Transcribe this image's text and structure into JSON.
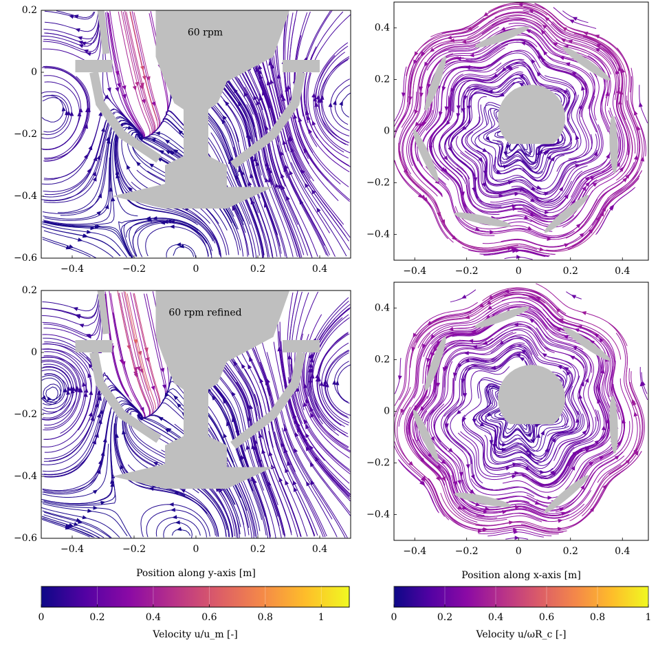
{
  "chart_data": [
    {
      "type": "streamline",
      "annotation": "60 rpm",
      "xlim": [
        -0.5,
        0.5
      ],
      "ylim": [
        -0.6,
        0.2
      ],
      "xticks": [
        {
          "value": -0.4,
          "label": "−0.4"
        },
        {
          "value": -0.2,
          "label": "−0.2"
        },
        0,
        0.2,
        0.4
      ],
      "yticks": [
        0.2,
        0,
        {
          "value": -0.2,
          "label": "−0.2"
        },
        {
          "value": -0.4,
          "label": "−0.4"
        },
        {
          "value": -0.6,
          "label": "−0.6"
        }
      ]
    },
    {
      "type": "streamline",
      "xlim": [
        -0.48,
        0.5
      ],
      "ylim": [
        -0.5,
        0.5
      ],
      "xticks": [
        {
          "value": -0.4,
          "label": "−0.4"
        },
        {
          "value": -0.2,
          "label": "−0.2"
        },
        0,
        0.2,
        0.4
      ],
      "yticks": [
        0.4,
        0.2,
        0,
        {
          "value": -0.2,
          "label": "−0.2"
        },
        {
          "value": -0.4,
          "label": "−0.4"
        }
      ]
    },
    {
      "type": "streamline",
      "annotation": "60 rpm refined",
      "xlim": [
        -0.5,
        0.5
      ],
      "ylim": [
        -0.6,
        0.2
      ],
      "xlabel": "Position along y-axis [m]",
      "xticks": [
        {
          "value": -0.4,
          "label": "−0.4"
        },
        {
          "value": -0.2,
          "label": "−0.2"
        },
        0,
        0.2,
        0.4
      ],
      "yticks": [
        0.2,
        0,
        {
          "value": -0.2,
          "label": "−0.2"
        },
        {
          "value": -0.4,
          "label": "−0.4"
        },
        {
          "value": -0.6,
          "label": "−0.6"
        }
      ]
    },
    {
      "type": "streamline",
      "xlim": [
        -0.48,
        0.5
      ],
      "ylim": [
        -0.5,
        0.5
      ],
      "xlabel": "Position along x-axis [m]",
      "xticks": [
        {
          "value": -0.4,
          "label": "−0.4"
        },
        {
          "value": -0.2,
          "label": "−0.2"
        },
        0,
        0.2,
        0.4
      ],
      "yticks": [
        0.4,
        0.2,
        0,
        {
          "value": -0.2,
          "label": "−0.2"
        },
        {
          "value": -0.4,
          "label": "−0.4"
        }
      ]
    },
    {
      "type": "colorbar",
      "label": "Velocity u/u_m [-]",
      "xlim": [
        0,
        1.1
      ],
      "xticks": [
        0,
        0.2,
        0.4,
        0.6,
        0.8,
        1
      ],
      "colors": [
        "#0d0887",
        "#5302a3",
        "#8b0aa5",
        "#b83289",
        "#db5c68",
        "#f48849",
        "#febd2a",
        "#f0f921"
      ]
    },
    {
      "type": "colorbar",
      "label": "Velocity u/ωR_c [-]",
      "xlim": [
        0,
        1
      ],
      "xticks": [
        0,
        0.2,
        0.4,
        0.6,
        0.8,
        1
      ],
      "colors": [
        "#0d0887",
        "#5302a3",
        "#8b0aa5",
        "#b83289",
        "#db5c68",
        "#f48849",
        "#febd2a",
        "#f0f921"
      ]
    }
  ]
}
